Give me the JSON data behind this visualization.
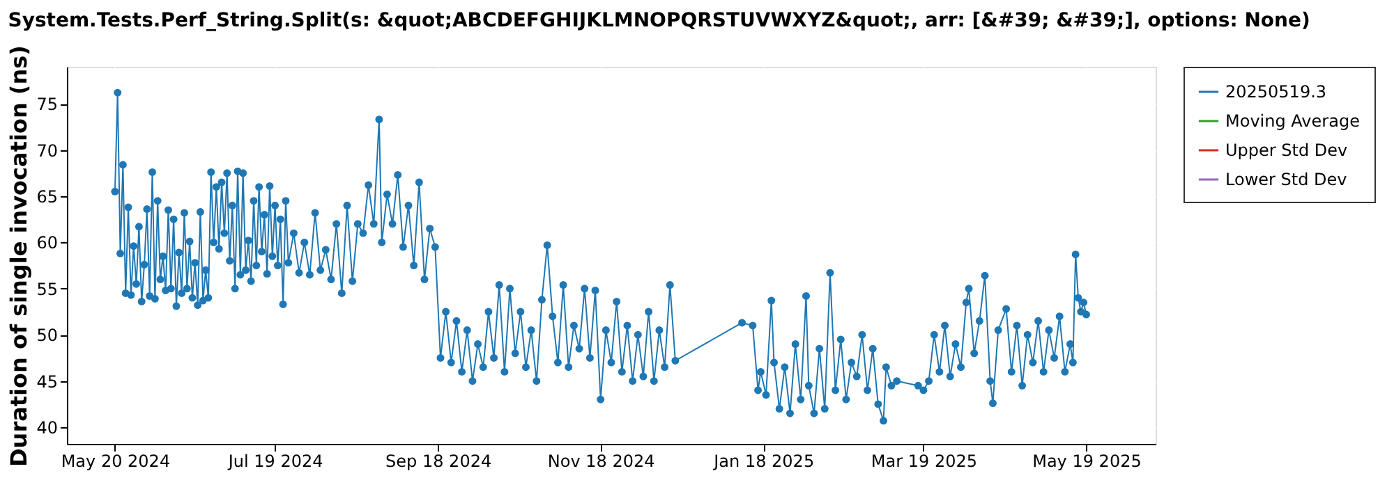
{
  "chart_data": {
    "type": "line",
    "title": "System.Tests.Perf_String.Split(s: &quot;ABCDEFGHIJKLMNOPQRSTUVWXYZ&quot;, arr: [&#39; &#39;], options: None)",
    "ylabel": "Duration of single invocation (ns)",
    "xlim": [
      "2024-05-02",
      "2025-06-14"
    ],
    "xticks": [
      {
        "value": "2024-05-20",
        "label": "May 20 2024"
      },
      {
        "value": "2024-07-19",
        "label": "Jul 19 2024"
      },
      {
        "value": "2024-09-18",
        "label": "Sep 18 2024"
      },
      {
        "value": "2024-11-18",
        "label": "Nov 18 2024"
      },
      {
        "value": "2025-01-18",
        "label": "Jan 18 2025"
      },
      {
        "value": "2025-03-19",
        "label": "Mar 19 2025"
      },
      {
        "value": "2025-05-19",
        "label": "May 19 2025"
      }
    ],
    "ylim": [
      38.2,
      79
    ],
    "yticks": [
      40,
      45,
      50,
      55,
      60,
      65,
      70,
      75
    ],
    "grid": true,
    "legend": "right",
    "marker": "circle",
    "line_style": "solid",
    "series": [
      {
        "name": "20250519.3",
        "color": "#1f77b4",
        "x": [
          "2024-05-20",
          "2024-05-21",
          "2024-05-22",
          "2024-05-23",
          "2024-05-24",
          "2024-05-25",
          "2024-05-26",
          "2024-05-27",
          "2024-05-28",
          "2024-05-29",
          "2024-05-30",
          "2024-05-31",
          "2024-06-01",
          "2024-06-02",
          "2024-06-03",
          "2024-06-04",
          "2024-06-05",
          "2024-06-06",
          "2024-06-07",
          "2024-06-08",
          "2024-06-09",
          "2024-06-10",
          "2024-06-11",
          "2024-06-12",
          "2024-06-13",
          "2024-06-14",
          "2024-06-15",
          "2024-06-16",
          "2024-06-17",
          "2024-06-18",
          "2024-06-19",
          "2024-06-20",
          "2024-06-21",
          "2024-06-22",
          "2024-06-23",
          "2024-06-24",
          "2024-06-25",
          "2024-06-26",
          "2024-06-27",
          "2024-06-28",
          "2024-06-29",
          "2024-06-30",
          "2024-07-01",
          "2024-07-02",
          "2024-07-03",
          "2024-07-04",
          "2024-07-05",
          "2024-07-06",
          "2024-07-07",
          "2024-07-08",
          "2024-07-09",
          "2024-07-10",
          "2024-07-11",
          "2024-07-12",
          "2024-07-13",
          "2024-07-14",
          "2024-07-15",
          "2024-07-16",
          "2024-07-17",
          "2024-07-18",
          "2024-07-19",
          "2024-07-20",
          "2024-07-21",
          "2024-07-22",
          "2024-07-23",
          "2024-07-24",
          "2024-07-26",
          "2024-07-28",
          "2024-07-30",
          "2024-08-01",
          "2024-08-03",
          "2024-08-05",
          "2024-08-07",
          "2024-08-09",
          "2024-08-11",
          "2024-08-13",
          "2024-08-15",
          "2024-08-17",
          "2024-08-19",
          "2024-08-21",
          "2024-08-23",
          "2024-08-25",
          "2024-08-27",
          "2024-08-28",
          "2024-08-30",
          "2024-09-01",
          "2024-09-03",
          "2024-09-05",
          "2024-09-07",
          "2024-09-09",
          "2024-09-11",
          "2024-09-13",
          "2024-09-15",
          "2024-09-17",
          "2024-09-19",
          "2024-09-21",
          "2024-09-23",
          "2024-09-25",
          "2024-09-27",
          "2024-09-29",
          "2024-10-01",
          "2024-10-03",
          "2024-10-05",
          "2024-10-07",
          "2024-10-09",
          "2024-10-11",
          "2024-10-13",
          "2024-10-15",
          "2024-10-17",
          "2024-10-19",
          "2024-10-21",
          "2024-10-23",
          "2024-10-25",
          "2024-10-27",
          "2024-10-29",
          "2024-10-31",
          "2024-11-02",
          "2024-11-04",
          "2024-11-06",
          "2024-11-08",
          "2024-11-10",
          "2024-11-12",
          "2024-11-14",
          "2024-11-16",
          "2024-11-18",
          "2024-11-20",
          "2024-11-22",
          "2024-11-24",
          "2024-11-26",
          "2024-11-28",
          "2024-11-30",
          "2024-12-02",
          "2024-12-04",
          "2024-12-06",
          "2024-12-08",
          "2024-12-10",
          "2024-12-12",
          "2024-12-14",
          "2024-12-16",
          "2025-01-10",
          "2025-01-14",
          "2025-01-16",
          "2025-01-17",
          "2025-01-19",
          "2025-01-21",
          "2025-01-22",
          "2025-01-24",
          "2025-01-26",
          "2025-01-28",
          "2025-01-30",
          "2025-02-01",
          "2025-02-03",
          "2025-02-04",
          "2025-02-06",
          "2025-02-08",
          "2025-02-10",
          "2025-02-12",
          "2025-02-14",
          "2025-02-16",
          "2025-02-18",
          "2025-02-20",
          "2025-02-22",
          "2025-02-24",
          "2025-02-26",
          "2025-02-28",
          "2025-03-02",
          "2025-03-04",
          "2025-03-05",
          "2025-03-07",
          "2025-03-09",
          "2025-03-17",
          "2025-03-19",
          "2025-03-21",
          "2025-03-23",
          "2025-03-25",
          "2025-03-27",
          "2025-03-29",
          "2025-03-31",
          "2025-04-02",
          "2025-04-04",
          "2025-04-05",
          "2025-04-07",
          "2025-04-09",
          "2025-04-11",
          "2025-04-13",
          "2025-04-14",
          "2025-04-16",
          "2025-04-19",
          "2025-04-21",
          "2025-04-23",
          "2025-04-25",
          "2025-04-27",
          "2025-04-29",
          "2025-05-01",
          "2025-05-03",
          "2025-05-05",
          "2025-05-07",
          "2025-05-09",
          "2025-05-11",
          "2025-05-13",
          "2025-05-14",
          "2025-05-15",
          "2025-05-16",
          "2025-05-17",
          "2025-05-18",
          "2025-05-19"
        ],
        "values": [
          65.5,
          76.2,
          58.8,
          68.4,
          54.5,
          63.8,
          54.3,
          59.6,
          55.5,
          61.7,
          53.6,
          57.6,
          63.6,
          54.2,
          67.6,
          53.9,
          64.5,
          56.0,
          58.5,
          54.8,
          63.5,
          55.0,
          62.5,
          53.1,
          58.9,
          54.5,
          63.2,
          55.0,
          60.1,
          54.0,
          57.8,
          53.2,
          63.3,
          53.7,
          57.0,
          54.0,
          67.6,
          60.0,
          66.0,
          59.3,
          66.5,
          61.0,
          67.5,
          58.0,
          64.0,
          55.0,
          67.7,
          56.5,
          67.5,
          57.0,
          60.2,
          55.8,
          64.5,
          57.5,
          66.0,
          59.0,
          63.0,
          56.6,
          66.1,
          58.5,
          64.0,
          57.5,
          62.5,
          53.3,
          64.5,
          57.8,
          61.0,
          56.7,
          60.0,
          56.5,
          63.2,
          57.0,
          59.2,
          56.0,
          62.0,
          54.5,
          64.0,
          55.8,
          62.0,
          61.0,
          66.2,
          62.0,
          73.3,
          60.0,
          65.2,
          62.0,
          67.3,
          59.5,
          64.0,
          57.5,
          66.5,
          56.0,
          61.5,
          59.5,
          47.5,
          52.5,
          47.0,
          51.5,
          46.0,
          50.5,
          45.0,
          49.0,
          46.5,
          52.5,
          47.5,
          55.4,
          46.0,
          55.0,
          48.0,
          52.5,
          46.5,
          50.5,
          45.0,
          53.8,
          59.7,
          52.0,
          47.0,
          55.4,
          46.5,
          51.0,
          48.5,
          55.0,
          47.5,
          54.8,
          43.0,
          50.5,
          47.0,
          53.6,
          46.0,
          51.0,
          45.0,
          50.0,
          45.5,
          52.5,
          45.0,
          50.5,
          46.5,
          55.4,
          47.2,
          51.3,
          51.0,
          44.0,
          46.0,
          43.5,
          53.7,
          47.0,
          42.0,
          46.5,
          41.5,
          49.0,
          43.0,
          54.2,
          44.5,
          41.5,
          48.5,
          42.0,
          56.7,
          44.0,
          49.5,
          43.0,
          47.0,
          45.5,
          50.0,
          44.0,
          48.5,
          42.5,
          40.7,
          46.5,
          44.5,
          45.0,
          44.5,
          44.0,
          45.0,
          50.0,
          46.0,
          51.0,
          45.5,
          49.0,
          46.5,
          53.5,
          55.0,
          48.0,
          51.5,
          56.4,
          45.0,
          42.6,
          50.5,
          52.8,
          46.0,
          51.0,
          44.5,
          50.0,
          47.0,
          51.5,
          46.0,
          50.5,
          47.5,
          52.0,
          46.0,
          49.0,
          47.0,
          58.7,
          54.0,
          52.5,
          53.5,
          52.2
        ]
      },
      {
        "name": "Moving Average",
        "color": "#2ca02c"
      },
      {
        "name": "Upper Std Dev",
        "color": "#d62728"
      },
      {
        "name": "Lower Std Dev",
        "color": "#9467bd"
      }
    ]
  }
}
